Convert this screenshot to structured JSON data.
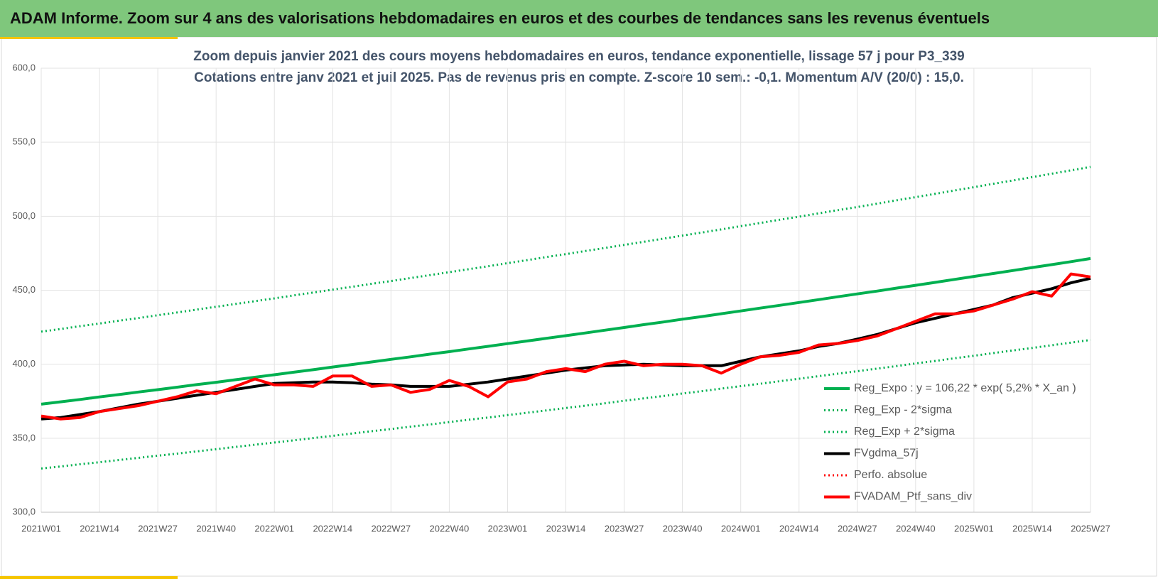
{
  "header": "ADAM Informe. Zoom sur 4 ans des valorisations hebdomadaires en euros et des courbes de tendances sans les revenus éventuels",
  "chart_data": {
    "type": "line",
    "title": "Zoom depuis janvier 2021 des cours moyens hebdomadaires  en euros, tendance exponentielle, lissage 57 j pour P3_339",
    "subtitle": "Cotations entre janv 2021 et juil 2025. Pas de revenus pris en compte. Z-score 10 sem.: -0,1. Momentum A/V (20/0) : 15,0.",
    "categories": [
      "2021W01",
      null,
      null,
      "2021W14",
      null,
      null,
      "2021W27",
      null,
      null,
      "2021W40",
      null,
      null,
      "2022W01",
      null,
      null,
      "2022W14",
      null,
      null,
      "2022W27",
      null,
      null,
      "2022W40",
      null,
      null,
      "2023W01",
      null,
      null,
      "2023W14",
      null,
      null,
      "2023W27",
      null,
      null,
      "2023W40",
      null,
      null,
      "2024W01",
      null,
      null,
      "2024W14",
      null,
      null,
      "2024W27",
      null,
      null,
      "2024W40",
      null,
      null,
      "2025W01",
      null,
      null,
      "2025W14",
      null,
      null,
      "2025W27"
    ],
    "ylim": [
      300,
      600
    ],
    "yticks": [
      {
        "value": 300,
        "label": "300,0"
      },
      {
        "value": 350,
        "label": "350,0"
      },
      {
        "value": 400,
        "label": "400,0"
      },
      {
        "value": 450,
        "label": "450,0"
      },
      {
        "value": 500,
        "label": "500,0"
      },
      {
        "value": 550,
        "label": "550,0"
      },
      {
        "value": 600,
        "label": "600,0"
      }
    ],
    "grid": true,
    "legend": "lower right",
    "series": [
      {
        "name": "Reg_Expo : y = 106,22 * exp( 5,2% *  X_an )",
        "color": "#00b050",
        "style": "solid",
        "values": [
          373.0,
          374.6,
          376.2,
          377.9,
          379.5,
          381.2,
          382.8,
          384.5,
          386.2,
          387.8,
          389.5,
          391.2,
          392.9,
          394.6,
          396.3,
          398.1,
          399.8,
          401.5,
          403.3,
          405.0,
          406.8,
          408.5,
          410.3,
          412.1,
          413.9,
          415.7,
          417.5,
          419.3,
          421.1,
          423.0,
          424.8,
          426.7,
          428.5,
          430.4,
          432.2,
          434.1,
          436.0,
          437.9,
          439.8,
          441.7,
          443.6,
          445.6,
          447.5,
          449.4,
          451.4,
          453.3,
          455.3,
          457.3,
          459.3,
          461.3,
          463.3,
          465.3,
          467.3,
          469.3,
          471.4
        ]
      },
      {
        "name": "Reg_Exp - 2*sigma",
        "color": "#00b050",
        "style": "dotted",
        "values": [
          329.5,
          330.9,
          332.4,
          333.8,
          335.3,
          336.7,
          338.2,
          339.6,
          341.1,
          342.6,
          344.1,
          345.6,
          347.1,
          348.6,
          350.1,
          351.6,
          353.2,
          354.7,
          356.2,
          357.8,
          359.3,
          360.9,
          362.5,
          364.0,
          365.6,
          367.2,
          368.8,
          370.4,
          372.0,
          373.6,
          375.3,
          376.9,
          378.5,
          380.2,
          381.8,
          383.5,
          385.2,
          386.8,
          388.5,
          390.2,
          391.9,
          393.6,
          395.3,
          397.0,
          398.7,
          400.5,
          402.2,
          404.0,
          405.7,
          407.5,
          409.3,
          411.0,
          412.8,
          414.6,
          416.4
        ]
      },
      {
        "name": "Reg_Exp + 2*sigma",
        "color": "#00b050",
        "style": "dotted",
        "values": [
          422.0,
          423.8,
          425.7,
          427.5,
          429.4,
          431.2,
          433.1,
          435.0,
          436.9,
          438.8,
          440.7,
          442.6,
          444.5,
          446.5,
          448.4,
          450.4,
          452.3,
          454.3,
          456.2,
          458.2,
          460.2,
          462.2,
          464.2,
          466.2,
          468.3,
          470.3,
          472.4,
          474.4,
          476.5,
          478.5,
          480.6,
          482.7,
          484.8,
          486.9,
          489.0,
          491.1,
          493.3,
          495.4,
          497.6,
          499.7,
          501.9,
          504.1,
          506.2,
          508.4,
          510.7,
          512.9,
          515.1,
          517.4,
          519.6,
          521.9,
          524.1,
          526.4,
          528.7,
          531.0,
          533.3
        ]
      },
      {
        "name": "FVgdma_57j",
        "color": "#000000",
        "style": "solid",
        "values": [
          363,
          364,
          366,
          368,
          370.5,
          373,
          375,
          377,
          379,
          381,
          383,
          385,
          387,
          387.5,
          388,
          388,
          387.5,
          386.5,
          386,
          385,
          385,
          385,
          386.5,
          388,
          390,
          392,
          394,
          396,
          397.5,
          399,
          399.5,
          400,
          399.5,
          399,
          399,
          399,
          402,
          405,
          407,
          409,
          412,
          414,
          417,
          420,
          424,
          428,
          431,
          434,
          437,
          440,
          445,
          448,
          451,
          455,
          458
        ]
      },
      {
        "name": "Perfo. absolue",
        "color": "#ff0000",
        "style": "dotted",
        "values": [
          null,
          null,
          null,
          null,
          null,
          null,
          null,
          null,
          null,
          null,
          null,
          null,
          null,
          null,
          null,
          null,
          null,
          null,
          null,
          null,
          null,
          null,
          null,
          null,
          null,
          null,
          null,
          null,
          null,
          null,
          null,
          null,
          null,
          null,
          null,
          null,
          null,
          null,
          null,
          null,
          null,
          null,
          null,
          null,
          null,
          null,
          null,
          null,
          null,
          null,
          null,
          null,
          null,
          null,
          null
        ]
      },
      {
        "name": "FVADAM_Ptf_sans_div",
        "color": "#ff0000",
        "style": "solid",
        "values": [
          365,
          363,
          364,
          368,
          370,
          372,
          375,
          378,
          382,
          380,
          385,
          390,
          386,
          386,
          385,
          392,
          392,
          385,
          386,
          381,
          383,
          389,
          385,
          378,
          388,
          390,
          395,
          397,
          395,
          400,
          402,
          399,
          400,
          400,
          399,
          394,
          400,
          405,
          406,
          408,
          413,
          414,
          416,
          419,
          424,
          429,
          434,
          434,
          436,
          440,
          444,
          449,
          446,
          461,
          459
        ]
      }
    ]
  }
}
